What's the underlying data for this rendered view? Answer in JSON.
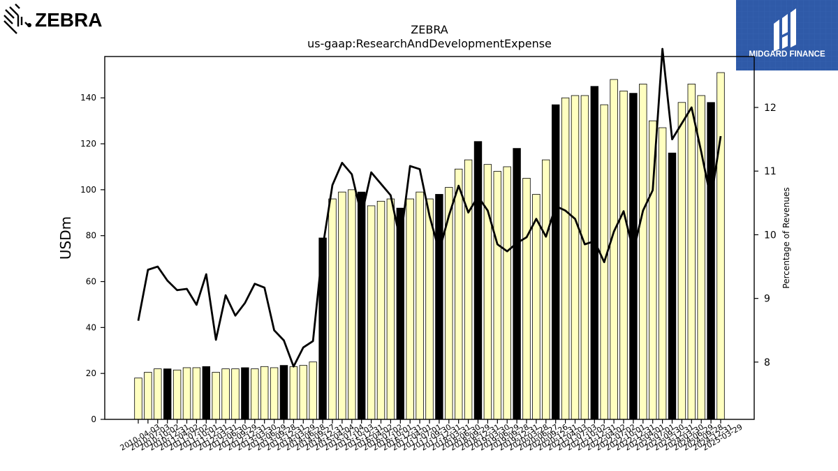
{
  "brand": {
    "left_logo_text": "ZEBRA",
    "right_logo_text": "MIDGARD FINANCE",
    "right_logo_bg": "#2f5aa8"
  },
  "chart_data": {
    "type": "bar",
    "title": "ZEBRA",
    "subtitle": "us-gaap:ResearchAndDevelopmentExpense",
    "ylabel": "USDm",
    "y2label": "Percentage of Revenues",
    "ylim": [
      0,
      158
    ],
    "y2lim": [
      7.1,
      12.8
    ],
    "yticks": [
      0,
      20,
      40,
      60,
      80,
      100,
      120,
      140
    ],
    "y2ticks": [
      8,
      9,
      10,
      11,
      12
    ],
    "grid": false,
    "colors": {
      "bar_regular": "#ffffc0",
      "bar_annual": "#000000",
      "line": "#000000"
    },
    "categories": [
      "2010-04-03",
      "2010-07-03",
      "2010-10-02",
      "2010-12-31",
      "2011-04-02",
      "2011-07-02",
      "2011-10-01",
      "2011-12-31",
      "2012-03-31",
      "2012-06-30",
      "2012-09-29",
      "2012-12-31",
      "2013-03-30",
      "2013-06-29",
      "2013-09-28",
      "2013-12-31",
      "2014-03-29",
      "2014-06-28",
      "2014-09-27",
      "2014-12-31",
      "2015-04-04",
      "2015-07-04",
      "2015-10-03",
      "2015-12-31",
      "2016-04-02",
      "2016-07-02",
      "2016-10-01",
      "2016-12-31",
      "2017-04-01",
      "2017-07-01",
      "2017-09-30",
      "2017-12-31",
      "2018-03-31",
      "2018-06-30",
      "2018-09-29",
      "2018-12-31",
      "2019-03-30",
      "2019-06-29",
      "2019-09-28",
      "2019-12-31",
      "2020-03-28",
      "2020-06-27",
      "2020-09-26",
      "2020-12-31",
      "2021-04-03",
      "2021-07-03",
      "2021-10-02",
      "2021-12-31",
      "2022-04-02",
      "2022-07-02",
      "2022-10-01",
      "2022-12-31",
      "2023-04-01",
      "2023-07-01",
      "2023-09-30",
      "2023-12-31",
      "2024-03-30",
      "2024-06-29",
      "2024-09-28",
      "2024-12-31",
      "2025-03-29"
    ],
    "annual_categories": [
      "2010-12-31",
      "2011-12-31",
      "2012-12-31",
      "2013-12-31",
      "2014-12-31",
      "2015-12-31",
      "2016-12-31",
      "2017-12-31",
      "2018-12-31",
      "2019-12-31",
      "2020-12-31",
      "2021-12-31",
      "2022-12-31",
      "2023-12-31",
      "2024-12-31"
    ],
    "series": [
      {
        "name": "USDm",
        "type": "bar",
        "values": [
          18,
          20.5,
          22,
          22,
          21.5,
          22.5,
          22.5,
          23,
          20.5,
          22,
          22,
          22.5,
          22,
          23,
          22.5,
          23.5,
          23,
          23.5,
          25,
          79,
          96,
          99,
          100,
          99,
          93,
          95,
          96,
          92,
          96,
          99,
          96,
          98,
          101,
          109,
          113,
          121,
          111,
          108,
          110,
          118,
          105,
          98,
          113,
          137,
          140,
          141,
          141,
          145,
          137,
          148,
          143,
          142,
          146,
          130,
          127,
          116,
          138,
          146,
          141,
          138,
          151
        ]
      },
      {
        "name": "Percentage of Revenues",
        "type": "line",
        "axis": "right",
        "values": [
          8.65,
          9.45,
          9.5,
          9.28,
          9.13,
          9.15,
          8.9,
          9.38,
          8.35,
          9.05,
          8.73,
          8.93,
          9.23,
          9.17,
          8.5,
          8.34,
          7.93,
          8.23,
          8.33,
          9.8,
          10.78,
          11.13,
          10.95,
          10.3,
          10.98,
          10.8,
          10.62,
          9.9,
          11.08,
          11.03,
          10.3,
          9.74,
          10.3,
          10.77,
          10.35,
          10.6,
          10.38,
          9.85,
          9.74,
          9.87,
          9.96,
          10.25,
          9.97,
          10.45,
          10.38,
          10.25,
          9.85,
          9.9,
          9.57,
          10.05,
          10.37,
          9.74,
          10.38,
          10.7,
          12.92,
          11.5,
          11.75,
          12.0,
          11.3,
          10.55,
          11.55
        ]
      }
    ]
  }
}
